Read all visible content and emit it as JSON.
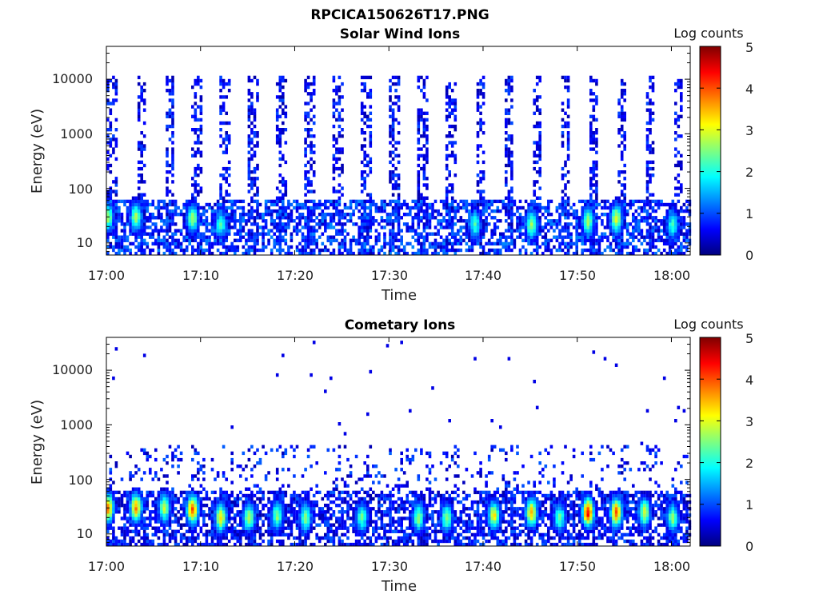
{
  "figure": {
    "title": "RPCICA150626T17.PNG"
  },
  "colormap": {
    "name": "jet",
    "stops": [
      "#00007f",
      "#0000ff",
      "#007fff",
      "#00ffff",
      "#7fff7f",
      "#ffff00",
      "#ff7f00",
      "#ff0000",
      "#7f0000"
    ]
  },
  "chart_data": [
    {
      "type": "heatmap",
      "title": "Solar Wind Ions",
      "xlabel": "Time",
      "ylabel": "Energy (eV)",
      "yscale": "log",
      "xlim": [
        "17:00",
        "18:02"
      ],
      "ylim": [
        6,
        40000
      ],
      "xticks": [
        "17:00",
        "17:10",
        "17:20",
        "17:30",
        "17:40",
        "17:50",
        "18:00"
      ],
      "yticks": [
        "10",
        "100",
        "1000",
        "10000"
      ],
      "colorbar": {
        "label": "Log counts",
        "range": [
          0,
          5
        ],
        "ticks": [
          "0",
          "1",
          "2",
          "3",
          "4",
          "5"
        ]
      },
      "sweep_period_min": 3,
      "sweep_start_times": [
        "17:00",
        "17:03",
        "17:06",
        "17:09",
        "17:12",
        "17:15",
        "17:18",
        "17:21",
        "17:24",
        "17:27",
        "17:30",
        "17:33",
        "17:36",
        "17:39",
        "17:42",
        "17:45",
        "17:48",
        "17:51",
        "17:54",
        "17:57",
        "18:00"
      ],
      "features": [
        {
          "time": "17:00",
          "energy_ev": 30,
          "log_counts": 2.5
        },
        {
          "time": "17:03",
          "energy_ev": 30,
          "log_counts": 2.5
        },
        {
          "time": "17:09",
          "energy_ev": 28,
          "log_counts": 2.5
        },
        {
          "time": "17:12",
          "energy_ev": 22,
          "log_counts": 2.0
        },
        {
          "time": "17:39",
          "energy_ev": 22,
          "log_counts": 2.0
        },
        {
          "time": "17:45",
          "energy_ev": 22,
          "log_counts": 2.5
        },
        {
          "time": "17:51",
          "energy_ev": 25,
          "log_counts": 2.5
        },
        {
          "time": "17:54",
          "energy_ev": 28,
          "log_counts": 2.8
        },
        {
          "time": "18:00",
          "energy_ev": 22,
          "log_counts": 2.0
        }
      ],
      "background_log_counts": [
        0.1,
        1.0
      ],
      "upper_energy_ev": 12000
    },
    {
      "type": "heatmap",
      "title": "Cometary Ions",
      "xlabel": "Time",
      "ylabel": "Energy (eV)",
      "yscale": "log",
      "xlim": [
        "17:00",
        "18:02"
      ],
      "ylim": [
        6,
        40000
      ],
      "xticks": [
        "17:00",
        "17:10",
        "17:20",
        "17:30",
        "17:40",
        "17:50",
        "18:00"
      ],
      "yticks": [
        "10",
        "100",
        "1000",
        "10000"
      ],
      "colorbar": {
        "label": "Log counts",
        "range": [
          0,
          5
        ],
        "ticks": [
          "0",
          "1",
          "2",
          "3",
          "4",
          "5"
        ]
      },
      "sweep_period_min": 3,
      "sweep_start_times": [
        "17:00",
        "17:03",
        "17:06",
        "17:09",
        "17:12",
        "17:15",
        "17:18",
        "17:21",
        "17:24",
        "17:27",
        "17:30",
        "17:33",
        "17:36",
        "17:39",
        "17:42",
        "17:45",
        "17:48",
        "17:51",
        "17:54",
        "17:57",
        "18:00"
      ],
      "features": [
        {
          "time": "17:00",
          "energy_ev": 30,
          "log_counts": 3.6
        },
        {
          "time": "17:03",
          "energy_ev": 30,
          "log_counts": 3.5
        },
        {
          "time": "17:06",
          "energy_ev": 30,
          "log_counts": 2.6
        },
        {
          "time": "17:09",
          "energy_ev": 28,
          "log_counts": 3.8
        },
        {
          "time": "17:12",
          "energy_ev": 20,
          "log_counts": 3.0
        },
        {
          "time": "17:15",
          "energy_ev": 20,
          "log_counts": 2.6
        },
        {
          "time": "17:18",
          "energy_ev": 22,
          "log_counts": 2.4
        },
        {
          "time": "17:21",
          "energy_ev": 20,
          "log_counts": 2.4
        },
        {
          "time": "17:27",
          "energy_ev": 20,
          "log_counts": 2.2
        },
        {
          "time": "17:33",
          "energy_ev": 20,
          "log_counts": 2.4
        },
        {
          "time": "17:36",
          "energy_ev": 20,
          "log_counts": 2.4
        },
        {
          "time": "17:41",
          "energy_ev": 22,
          "log_counts": 3.0
        },
        {
          "time": "17:45",
          "energy_ev": 25,
          "log_counts": 3.3
        },
        {
          "time": "17:48",
          "energy_ev": 20,
          "log_counts": 2.2
        },
        {
          "time": "17:51",
          "energy_ev": 25,
          "log_counts": 4.2
        },
        {
          "time": "17:54",
          "energy_ev": 25,
          "log_counts": 3.8
        },
        {
          "time": "17:57",
          "energy_ev": 25,
          "log_counts": 2.8
        },
        {
          "time": "18:00",
          "energy_ev": 20,
          "log_counts": 2.4
        }
      ],
      "background_log_counts": [
        0.1,
        1.2
      ],
      "upper_energy_ev": 400
    }
  ]
}
